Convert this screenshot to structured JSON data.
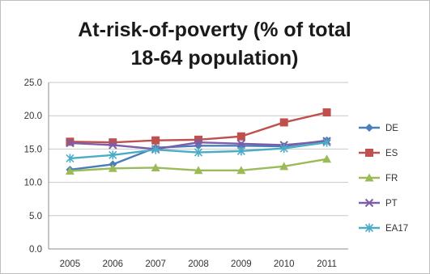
{
  "chart_data": {
    "type": "line",
    "title_lines": [
      "At-risk-of-poverty (% of total",
      "18-64 population)"
    ],
    "xlabel": "",
    "ylabel": "",
    "x": [
      "2005",
      "2006",
      "2007",
      "2008",
      "2009",
      "2010",
      "2011"
    ],
    "ylim": [
      0,
      25
    ],
    "yticks": [
      "0.0",
      "5.0",
      "10.0",
      "15.0",
      "20.0",
      "25.0"
    ],
    "grid": true,
    "legend": "right",
    "series": [
      {
        "name": "DE",
        "color": "#4a7ebb",
        "marker": "diamond",
        "values": [
          11.9,
          12.7,
          15.2,
          15.5,
          15.5,
          15.4,
          16.3
        ]
      },
      {
        "name": "ES",
        "color": "#c0504d",
        "marker": "square",
        "values": [
          16.1,
          16.0,
          16.3,
          16.4,
          16.9,
          19.0,
          20.5
        ]
      },
      {
        "name": "FR",
        "color": "#9bbb59",
        "marker": "triangle",
        "values": [
          11.7,
          12.1,
          12.2,
          11.8,
          11.8,
          12.4,
          13.5
        ]
      },
      {
        "name": "PT",
        "color": "#7b5ea7",
        "marker": "cross",
        "values": [
          15.9,
          15.6,
          15.0,
          16.0,
          15.8,
          15.6,
          16.2
        ]
      },
      {
        "name": "EA17",
        "color": "#4bacc6",
        "marker": "star",
        "values": [
          13.6,
          14.1,
          14.9,
          14.5,
          14.7,
          15.1,
          16.0
        ]
      }
    ]
  }
}
